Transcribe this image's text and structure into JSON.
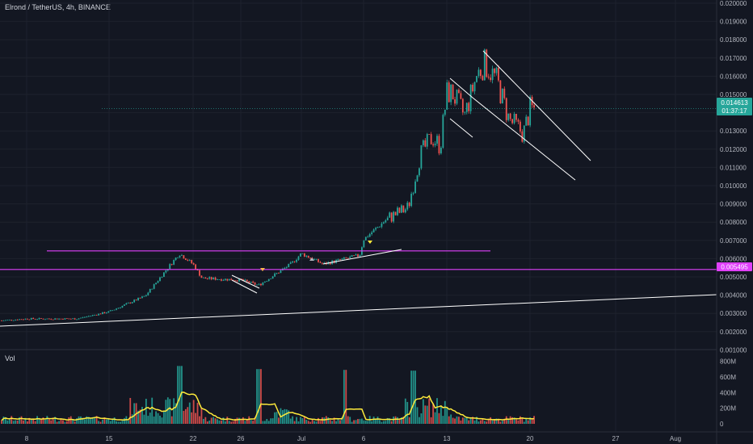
{
  "header": {
    "title": "Elrond / TetherUS, 4h, BINANCE",
    "volume_label": "Vol"
  },
  "price_axis": {
    "ticks": [
      "0.020000",
      "0.019000",
      "0.018000",
      "0.017000",
      "0.016000",
      "0.015000",
      "0.014000",
      "0.013000",
      "0.012000",
      "0.011000",
      "0.010000",
      "0.009000",
      "0.008000",
      "0.007000",
      "0.006000",
      "0.005000",
      "0.004000",
      "0.003000",
      "0.002000",
      "0.001000"
    ]
  },
  "volume_axis": {
    "ticks": [
      "800M",
      "600M",
      "400M",
      "200M",
      "0"
    ]
  },
  "time_axis": {
    "ticks": [
      "8",
      "15",
      "22",
      "26",
      "Jul",
      "6",
      "13",
      "20",
      "27",
      "Aug"
    ]
  },
  "tags": {
    "last_price": "0.014613",
    "countdown": "01:37:17",
    "level_price": "0.005495"
  },
  "colors": {
    "background": "#131722",
    "up": "#26a69a",
    "down": "#ef5350",
    "level_line": "#e040fb",
    "trendline": "#ffffff",
    "volume_ma": "#ffeb3b",
    "last_price_tag": "#26a69a"
  },
  "chart_data": {
    "type": "candlestick",
    "symbol": "Elrond / TetherUS",
    "timeframe": "4h",
    "exchange": "BINANCE",
    "ylim": [
      0.001,
      0.0205
    ],
    "volume_ylim": [
      0,
      850
    ],
    "volume_unit": "M",
    "x_ticks": [
      "8",
      "15",
      "22",
      "26",
      "Jul",
      "6",
      "13",
      "20",
      "27",
      "Aug"
    ],
    "key_points": [
      {
        "x": "8",
        "close": 0.0027
      },
      {
        "x": "15",
        "close": 0.0031
      },
      {
        "x": "22",
        "close": 0.0058
      },
      {
        "x": "26",
        "close": 0.0049
      },
      {
        "x": "Jul",
        "close": 0.0064
      },
      {
        "x": "6",
        "close": 0.0072
      },
      {
        "x": "13",
        "close": 0.0155
      },
      {
        "x": "20",
        "close": 0.0146
      }
    ],
    "last_price": 0.014613,
    "horizontal_levels": [
      0.005495,
      0.00655
    ],
    "series": [
      {
        "name": "Price"
      },
      {
        "name": "Vol"
      }
    ]
  }
}
